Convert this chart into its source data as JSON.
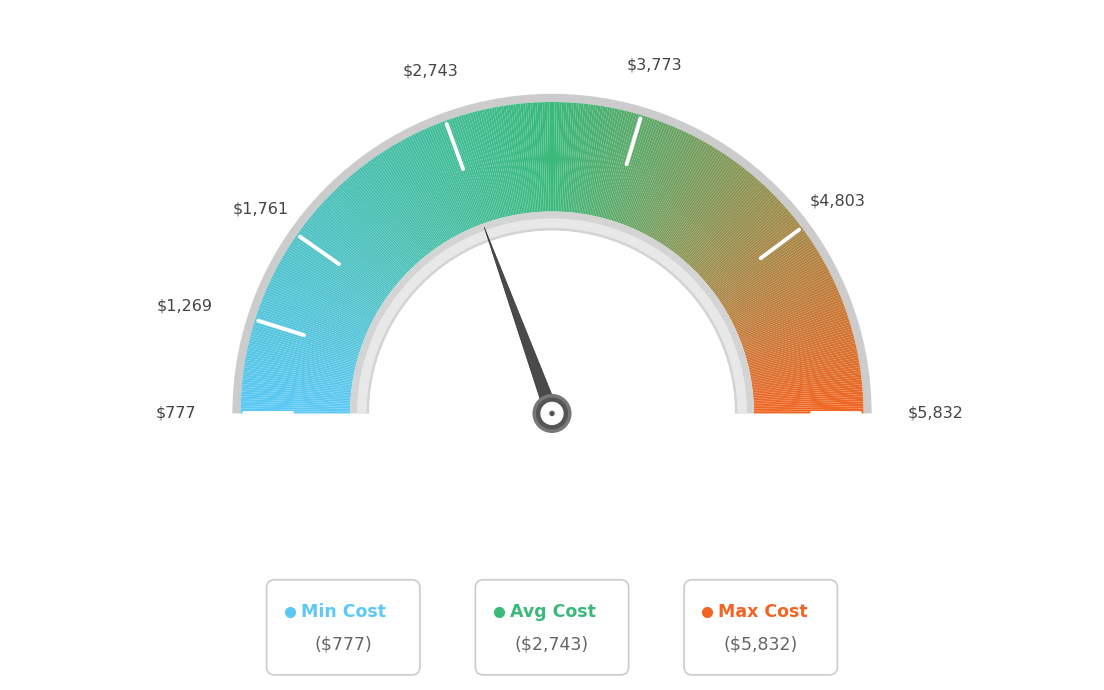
{
  "min_val": 777,
  "avg_val": 2743,
  "max_val": 5832,
  "tick_labels": [
    "$777",
    "$1,269",
    "$1,761",
    "$2,743",
    "$3,773",
    "$4,803",
    "$5,832"
  ],
  "tick_values": [
    777,
    1269,
    1761,
    2743,
    3773,
    4803,
    5832
  ],
  "legend_labels": [
    "Min Cost",
    "Avg Cost",
    "Max Cost"
  ],
  "legend_values": [
    "($777)",
    "($2,743)",
    "($5,832)"
  ],
  "legend_colors": [
    "#5bc8f5",
    "#3ab97a",
    "#f26522"
  ],
  "bg_color": "#ffffff",
  "color_stop_1": "#5bc8f5",
  "color_stop_2": "#3ab97a",
  "color_stop_3": "#f26522",
  "outer_border_color": "#d0d0d0",
  "inner_border_color": "#d8d8d8",
  "needle_color": "#555555",
  "needle_border_color": "#888888",
  "text_color": "#444444",
  "value_text_color": "#666666"
}
